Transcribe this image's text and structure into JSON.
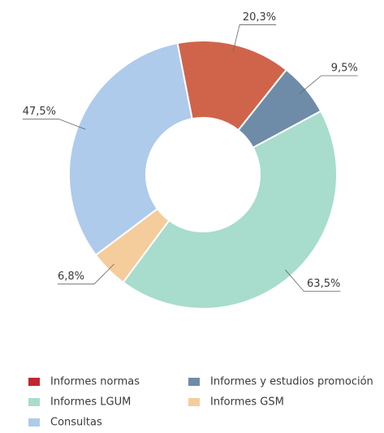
{
  "chart_data": {
    "type": "donut",
    "categories": [
      "Informes normas",
      "Informes y estudios promoción",
      "Informes LGUM",
      "Informes GSM",
      "Consultas"
    ],
    "values": [
      20.3,
      9.5,
      63.5,
      6.8,
      47.5
    ],
    "value_labels": [
      "20,3%",
      "9,5%",
      "63,5%",
      "6,8%",
      "47,5%"
    ],
    "colors": [
      "#d0644a",
      "#6e8ca8",
      "#a8dccd",
      "#f5cc9c",
      "#aecbeb"
    ],
    "legend_colors": [
      "#c0272d",
      "#6e8ca8",
      "#a8dccd",
      "#f5cc9c",
      "#aecbeb"
    ]
  }
}
